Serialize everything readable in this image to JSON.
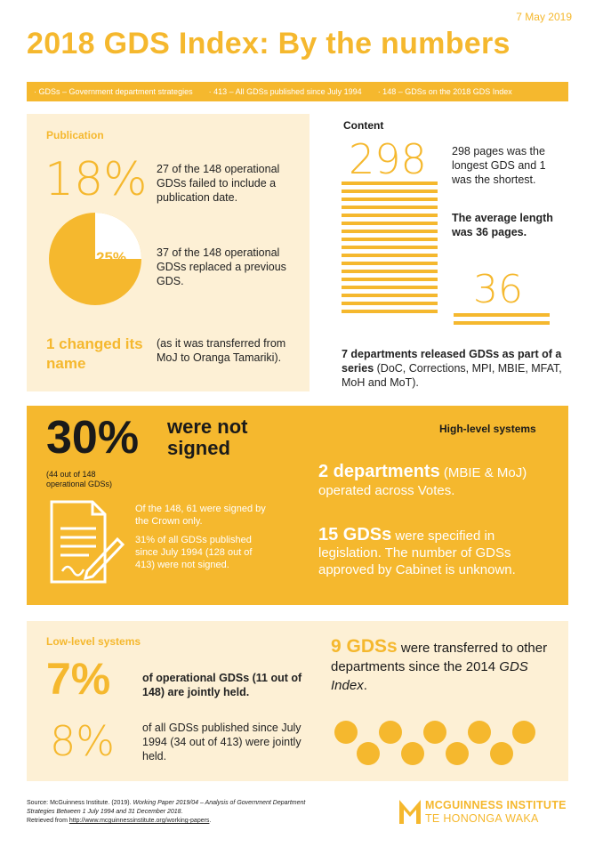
{
  "date": "7 May 2019",
  "title": "2018 GDS Index: By the numbers",
  "strip": {
    "item1": "· GDSs – Government department strategies",
    "item2": "· 413 – All GDSs published since July 1994",
    "item3": "· 148 – GDSs on the 2018 GDS Index"
  },
  "publication": {
    "heading": "Publication",
    "pct": "18%",
    "pct_text": "27 of the 148 operational GDSs failed to include a publication date.",
    "pie_label": "25%",
    "pie_value_pct": 25,
    "pie_text": "37 of the 148 operational GDSs replaced a previous GDS.",
    "changed": "1 changed its name",
    "changed_text": "(as it was transferred from MoJ to Oranga Tamariki)."
  },
  "content": {
    "heading": "Content",
    "big": "298",
    "big_text": "298 pages was the longest GDS and 1 was the shortest.",
    "avg_text": "The average length was 36 pages.",
    "small": "36",
    "series_bold": "7 departments released GDSs as part of a series",
    "series_rest": " (DoC, Corrections, MPI, MBIE, MFAT, MoH and MoT)."
  },
  "signed": {
    "pct": "30%",
    "label": "were not signed",
    "sub": "(44 out of 148 operational GDSs)",
    "text1": "Of the 148, 61 were signed by the Crown only.",
    "text2": "31% of all GDSs published since July 1994 (128 out of 413) were not signed."
  },
  "high": {
    "heading": "High-level systems",
    "d_bold": "2 departments",
    "d_paren": " (MBIE & MoJ)",
    "d_rest": "operated across Votes.",
    "g_bold": "15 GDSs",
    "g_rest": " were specified in legislation. The number of GDSs approved by Cabinet is unknown."
  },
  "low": {
    "heading": "Low-level systems",
    "pct1": "7%",
    "text1": "of operational GDSs (11 out of 148) are jointly held.",
    "pct2": "8%",
    "text2": "of all GDSs published since July 1994 (34 out of 413) were jointly held.",
    "t_big": "9 GDSs",
    "t_rest": " were transferred to other departments since the 2014 ",
    "t_ital": "GDS Index",
    "t_end": ".",
    "dot_count": 9
  },
  "source": {
    "line1": "Source: McGuinness Institute. (2019). ",
    "line1_ital": "Working Paper 2019/04 – Analysis of Government Department Strategies Between 1 July 1994 and 31 December 2018",
    "line1_end": ".",
    "line2": "Retrieved from ",
    "link": "http://www.mcguinnessinstitute.org/working-papers",
    "line2_end": "."
  },
  "logo": {
    "name": "MCGUINNESS INSTITUTE",
    "maori": "TE HONONGA WAKA"
  },
  "colors": {
    "accent": "#f5b82e",
    "light": "#fdf0d5"
  }
}
